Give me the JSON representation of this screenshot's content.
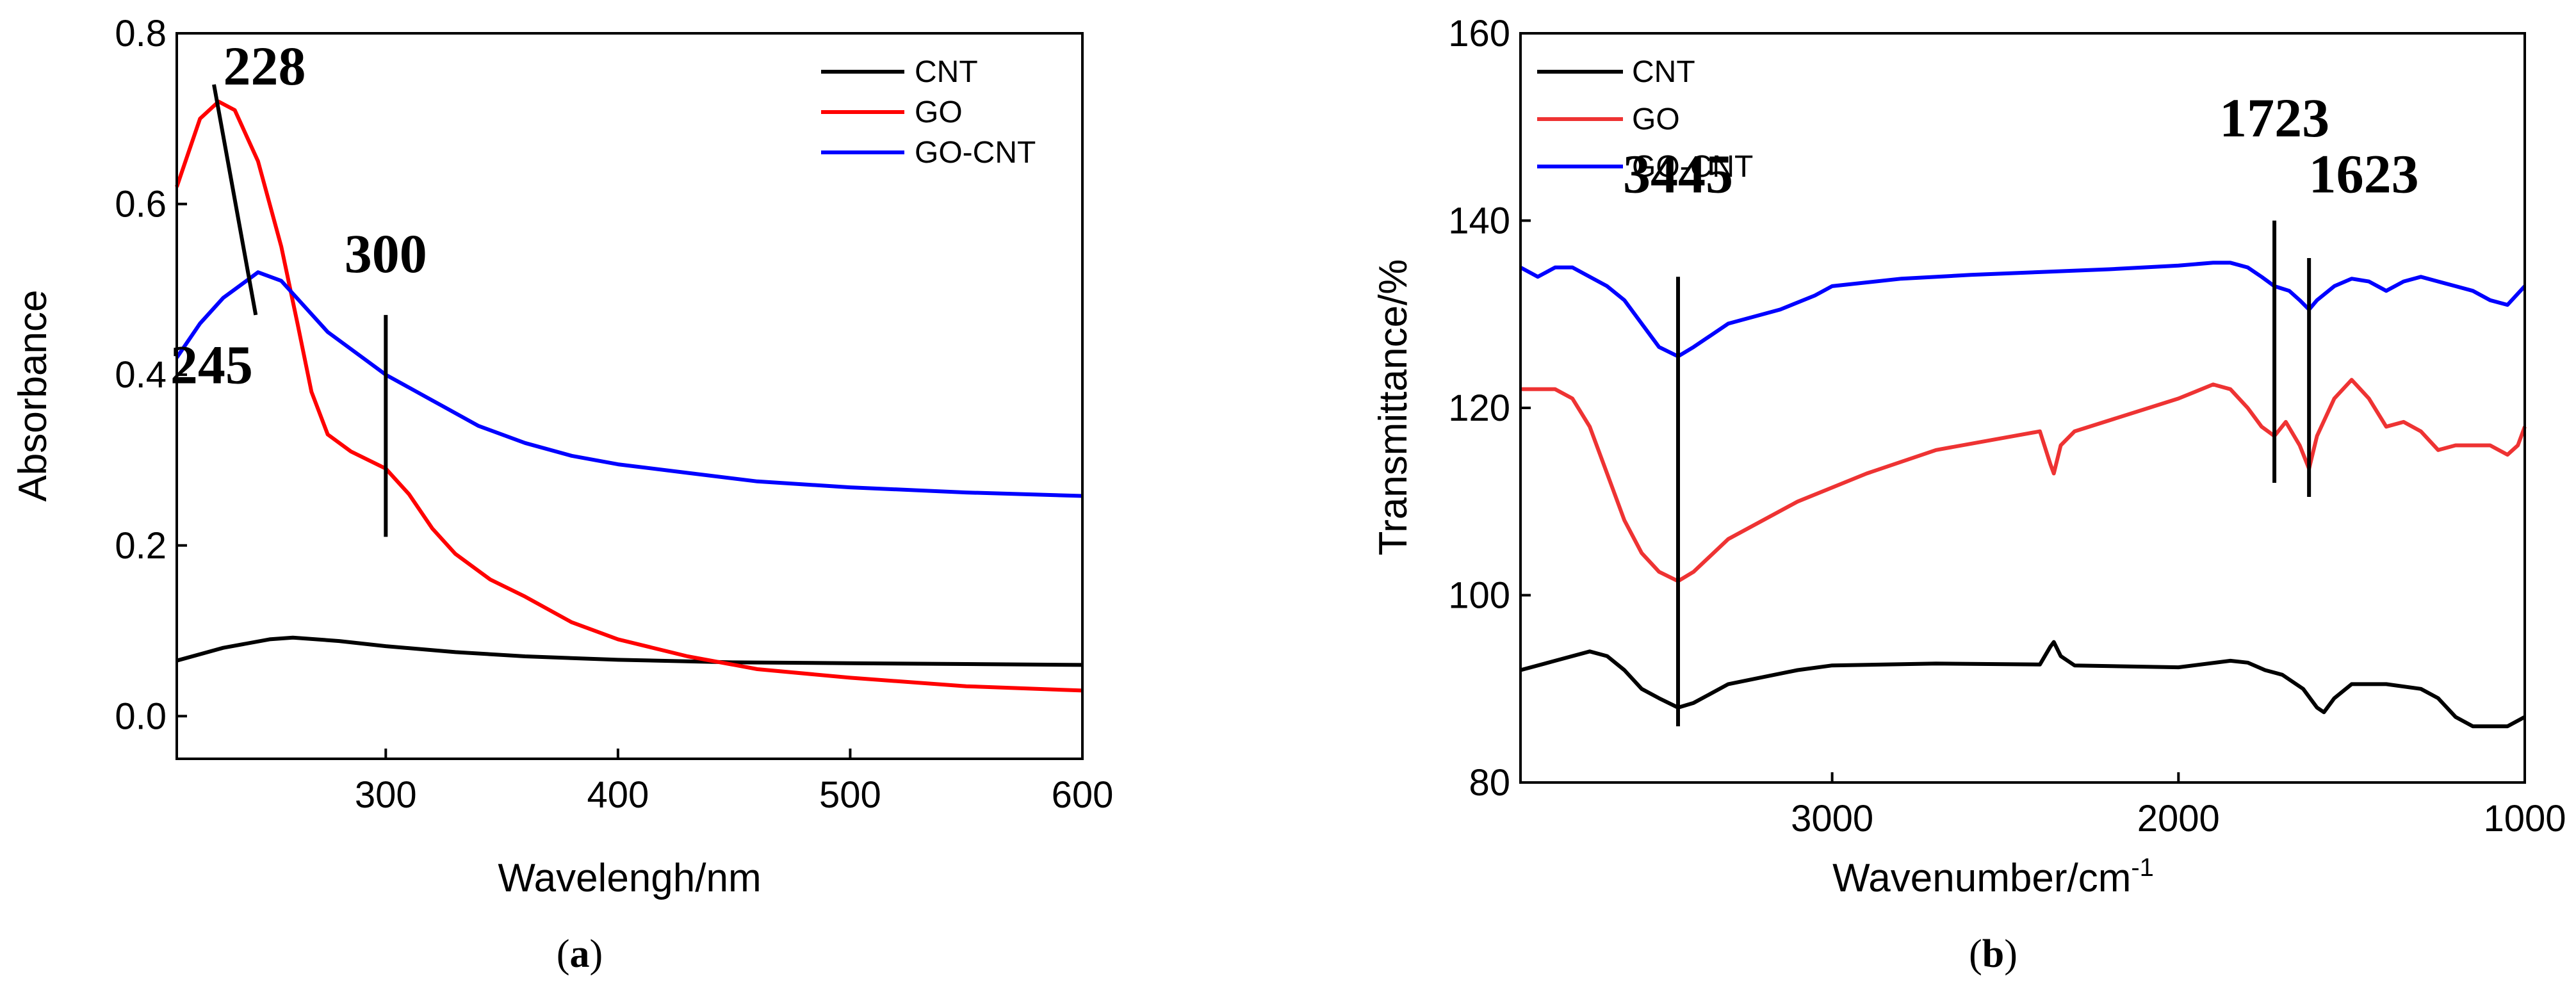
{
  "chart_data": [
    {
      "panel": "a",
      "type": "line",
      "caption_open": "(",
      "caption_letter": "a",
      "caption_close": ")",
      "xlabel": "Wavelengh/nm",
      "ylabel": "Absorbance",
      "xlim": [
        210,
        600
      ],
      "ylim": [
        -0.05,
        0.8
      ],
      "xticks": [
        300,
        400,
        500,
        600
      ],
      "xtick_labels": [
        "300",
        "400",
        "500",
        "600"
      ],
      "yticks": [
        0.0,
        0.2,
        0.4,
        0.6,
        0.8
      ],
      "ytick_labels": [
        "0.0",
        "0.2",
        "0.4",
        "0.6",
        "0.8"
      ],
      "legend": [
        "CNT",
        "GO",
        "GO-CNT"
      ],
      "series": [
        {
          "name": "CNT",
          "color": "#000000",
          "x": [
            210,
            230,
            250,
            260,
            280,
            300,
            330,
            360,
            400,
            450,
            500,
            550,
            600
          ],
          "y": [
            0.065,
            0.08,
            0.09,
            0.092,
            0.088,
            0.082,
            0.075,
            0.07,
            0.066,
            0.063,
            0.062,
            0.061,
            0.06
          ]
        },
        {
          "name": "GO",
          "color": "#ff0000",
          "x": [
            210,
            215,
            220,
            228,
            235,
            245,
            255,
            262,
            268,
            275,
            285,
            300,
            310,
            320,
            330,
            345,
            360,
            380,
            400,
            430,
            460,
            500,
            550,
            600
          ],
          "y": [
            0.62,
            0.66,
            0.7,
            0.72,
            0.71,
            0.65,
            0.55,
            0.46,
            0.38,
            0.33,
            0.31,
            0.29,
            0.26,
            0.22,
            0.19,
            0.16,
            0.14,
            0.11,
            0.09,
            0.07,
            0.055,
            0.045,
            0.035,
            0.03
          ]
        },
        {
          "name": "GO-CNT",
          "color": "#0000ff",
          "x": [
            210,
            220,
            230,
            240,
            245,
            255,
            265,
            275,
            290,
            300,
            320,
            340,
            360,
            380,
            400,
            430,
            460,
            500,
            550,
            600
          ],
          "y": [
            0.42,
            0.46,
            0.49,
            0.51,
            0.52,
            0.51,
            0.48,
            0.45,
            0.42,
            0.4,
            0.37,
            0.34,
            0.32,
            0.305,
            0.295,
            0.285,
            0.275,
            0.268,
            0.262,
            0.258
          ]
        }
      ],
      "annotations": [
        {
          "text": "228",
          "x": 230,
          "y": 0.74
        },
        {
          "text": "245",
          "x": 225,
          "y": 0.39
        },
        {
          "text": "300",
          "x": 300,
          "y": 0.52
        }
      ],
      "marker_lines": [
        {
          "x1": 226,
          "y1": 0.74,
          "x2": 244,
          "y2": 0.47
        },
        {
          "x1": 300,
          "y1": 0.47,
          "x2": 300,
          "y2": 0.21
        }
      ]
    },
    {
      "panel": "b",
      "type": "line",
      "caption_open": "(",
      "caption_letter": "b",
      "caption_close": ")",
      "xlabel": "Wavenumber/cm",
      "xlabel_sup": "-1",
      "ylabel": "Transmittance/%",
      "xlim": [
        3900,
        1000
      ],
      "ylim": [
        80,
        160
      ],
      "xticks": [
        3000,
        2000,
        1000
      ],
      "xtick_labels": [
        "3000",
        "2000",
        "1000"
      ],
      "yticks": [
        80,
        100,
        120,
        140,
        160
      ],
      "ytick_labels": [
        "80",
        "100",
        "120",
        "140",
        "160"
      ],
      "legend": [
        "CNT",
        "GO",
        "GO-CNT"
      ],
      "series": [
        {
          "name": "CNT",
          "color": "#000000",
          "x": [
            3900,
            3800,
            3700,
            3650,
            3600,
            3550,
            3500,
            3445,
            3400,
            3300,
            3100,
            3000,
            2700,
            2400,
            2370,
            2360,
            2340,
            2300,
            2000,
            1850,
            1800,
            1750,
            1700,
            1640,
            1600,
            1580,
            1550,
            1500,
            1400,
            1300,
            1250,
            1200,
            1150,
            1100,
            1050,
            1000
          ],
          "y": [
            92,
            93,
            94,
            93.5,
            92,
            90,
            89,
            88,
            88.5,
            90.5,
            92,
            92.5,
            92.7,
            92.6,
            94.5,
            95,
            93.5,
            92.5,
            92.3,
            93,
            92.8,
            92,
            91.5,
            90,
            88,
            87.5,
            89,
            90.5,
            90.5,
            90,
            89,
            87,
            86,
            86,
            86,
            87
          ]
        },
        {
          "name": "GO",
          "color": "#ee3333",
          "x": [
            3900,
            3800,
            3750,
            3700,
            3650,
            3600,
            3550,
            3500,
            3445,
            3400,
            3300,
            3100,
            2900,
            2700,
            2400,
            2370,
            2360,
            2340,
            2300,
            2000,
            1900,
            1850,
            1800,
            1760,
            1723,
            1690,
            1650,
            1623,
            1600,
            1550,
            1500,
            1450,
            1400,
            1350,
            1300,
            1250,
            1200,
            1150,
            1100,
            1050,
            1020,
            1000
          ],
          "y": [
            122,
            122,
            121,
            118,
            113,
            108,
            104.5,
            102.5,
            101.5,
            102.5,
            106,
            110,
            113,
            115.5,
            117.5,
            114,
            113,
            116,
            117.5,
            121,
            122.5,
            122,
            120,
            118,
            117,
            118.5,
            116,
            113.5,
            117,
            121,
            123,
            121,
            118,
            118.5,
            117.5,
            115.5,
            116,
            116,
            116,
            115,
            116,
            118
          ]
        },
        {
          "name": "GO-CNT",
          "color": "#0000ff",
          "x": [
            3900,
            3850,
            3800,
            3750,
            3700,
            3650,
            3600,
            3550,
            3500,
            3445,
            3400,
            3300,
            3150,
            3050,
            3000,
            2800,
            2600,
            2400,
            2200,
            2000,
            1900,
            1850,
            1800,
            1760,
            1723,
            1680,
            1650,
            1623,
            1600,
            1550,
            1500,
            1450,
            1400,
            1350,
            1300,
            1250,
            1200,
            1150,
            1100,
            1050,
            1000
          ],
          "y": [
            135,
            134,
            135,
            135,
            134,
            133,
            131.5,
            129,
            126.5,
            125.5,
            126.5,
            129,
            130.5,
            132,
            133,
            133.8,
            134.2,
            134.5,
            134.8,
            135.2,
            135.5,
            135.5,
            135,
            134,
            133,
            132.5,
            131.5,
            130.5,
            131.5,
            133,
            133.8,
            133.5,
            132.5,
            133.5,
            134,
            133.5,
            133,
            132.5,
            131.5,
            131,
            133
          ]
        }
      ],
      "annotations": [
        {
          "text": "3445",
          "x": 3445,
          "y": 143
        },
        {
          "text": "1723",
          "x": 1723,
          "y": 149
        },
        {
          "text": "1623",
          "x": 1465,
          "y": 143
        }
      ],
      "marker_lines": [
        {
          "x1": 3445,
          "y1": 134,
          "x2": 3445,
          "y2": 86
        },
        {
          "x1": 1723,
          "y1": 140,
          "x2": 1723,
          "y2": 112
        },
        {
          "x1": 1623,
          "y1": 136,
          "x2": 1623,
          "y2": 110.5
        }
      ]
    }
  ]
}
